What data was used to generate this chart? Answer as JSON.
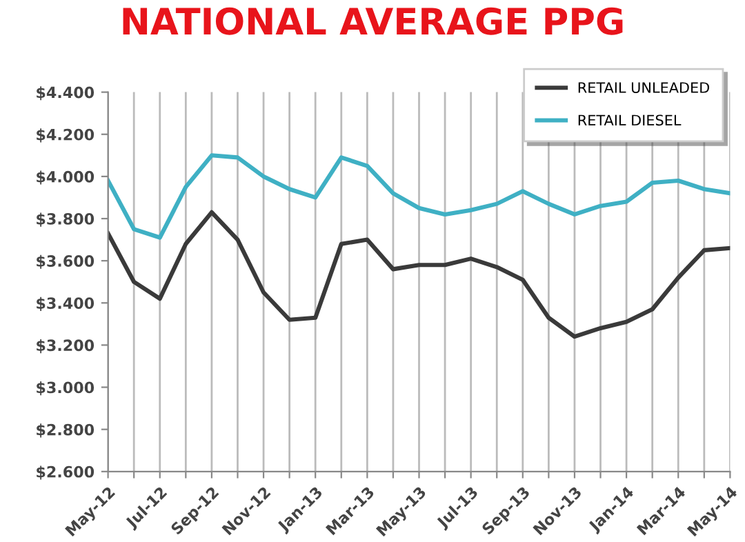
{
  "chart_data": {
    "type": "line",
    "title": "NATIONAL AVERAGE PPG",
    "categories": [
      "May-12",
      null,
      "Jul-12",
      null,
      "Sep-12",
      null,
      "Nov-12",
      null,
      "Jan-13",
      null,
      "Mar-13",
      null,
      "May-13",
      null,
      "Jul-13",
      null,
      "Sep-13",
      null,
      "Nov-13",
      null,
      "Jan-14",
      null,
      "Mar-14",
      null,
      "May-14"
    ],
    "series": [
      {
        "name": "RETAIL UNLEADED",
        "color": "#3a3a3a",
        "values": [
          3.73,
          3.5,
          3.42,
          3.68,
          3.83,
          3.7,
          3.45,
          3.32,
          3.33,
          3.68,
          3.7,
          3.56,
          3.58,
          3.58,
          3.61,
          3.57,
          3.51,
          3.33,
          3.24,
          3.28,
          3.31,
          3.37,
          3.52,
          3.65,
          3.66
        ]
      },
      {
        "name": "RETAIL DIESEL",
        "color": "#3fb0c4",
        "values": [
          3.98,
          3.75,
          3.71,
          3.95,
          4.1,
          4.09,
          4.0,
          3.94,
          3.9,
          4.09,
          4.05,
          3.92,
          3.85,
          3.82,
          3.84,
          3.87,
          3.93,
          3.87,
          3.82,
          3.86,
          3.88,
          3.97,
          3.98,
          3.94,
          3.92
        ]
      }
    ],
    "ylim": [
      2.6,
      4.4
    ],
    "yticks": [
      {
        "value": 2.6,
        "label": "$2.600"
      },
      {
        "value": 2.8,
        "label": "$2.800"
      },
      {
        "value": 3.0,
        "label": "$3.000"
      },
      {
        "value": 3.2,
        "label": "$3.200"
      },
      {
        "value": 3.4,
        "label": "$3.400"
      },
      {
        "value": 3.6,
        "label": "$3.600"
      },
      {
        "value": 3.8,
        "label": "$3.800"
      },
      {
        "value": 4.0,
        "label": "$4.000"
      },
      {
        "value": 4.2,
        "label": "$4.200"
      },
      {
        "value": 4.4,
        "label": "$4.400"
      }
    ],
    "grid": "x",
    "legend": "top right",
    "marker": "none",
    "line_style": "solid"
  }
}
